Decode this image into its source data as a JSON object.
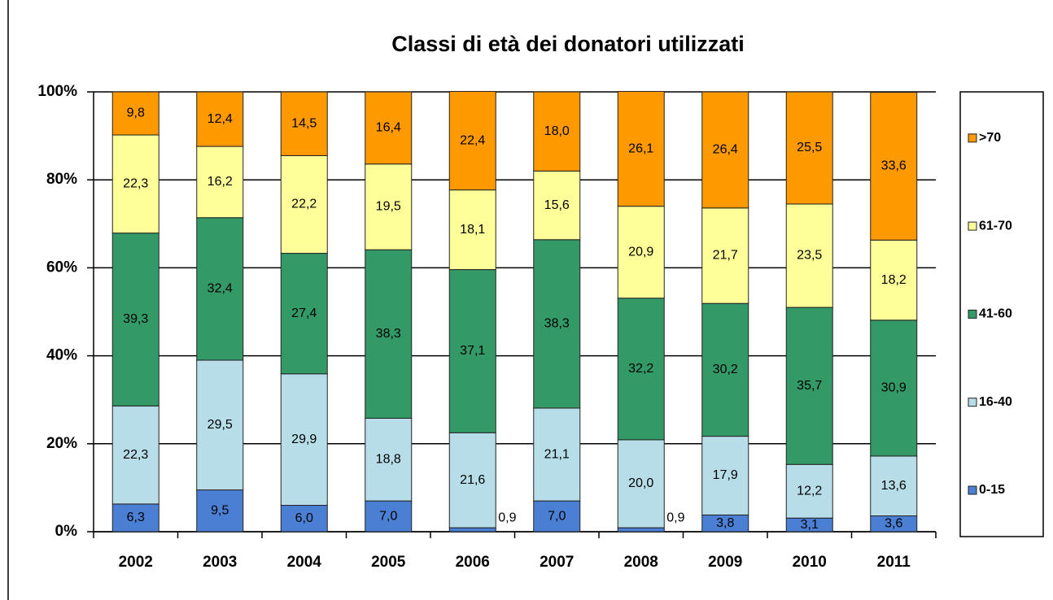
{
  "chart_data": {
    "type": "stacked_bar",
    "title": "Classi di età dei donatori utilizzati",
    "categories": [
      "2002",
      "2003",
      "2004",
      "2005",
      "2006",
      "2007",
      "2008",
      "2009",
      "2010",
      "2011"
    ],
    "series": [
      {
        "name": "0-15",
        "color": "#4a7fd4",
        "values": [
          6.3,
          9.5,
          6.0,
          7.0,
          0.9,
          7.0,
          0.9,
          3.8,
          3.1,
          3.6
        ],
        "value_labels": [
          "6,3",
          "9,5",
          "6,0",
          "7,0",
          "0,9",
          "7,0",
          "0,9",
          "3,8",
          "3,1",
          "3,6"
        ]
      },
      {
        "name": "16-40",
        "color": "#b7dde8",
        "values": [
          22.3,
          29.5,
          29.9,
          18.8,
          21.6,
          21.1,
          20.0,
          17.9,
          12.2,
          13.6
        ],
        "value_labels": [
          "22,3",
          "29,5",
          "29,9",
          "18,8",
          "21,6",
          "21,1",
          "20,0",
          "17,9",
          "12,2",
          "13,6"
        ]
      },
      {
        "name": "41-60",
        "color": "#339966",
        "values": [
          39.3,
          32.4,
          27.4,
          38.3,
          37.1,
          38.3,
          32.2,
          30.2,
          35.7,
          30.9
        ],
        "value_labels": [
          "39,3",
          "32,4",
          "27,4",
          "38,3",
          "37,1",
          "38,3",
          "32,2",
          "30,2",
          "35,7",
          "30,9"
        ]
      },
      {
        "name": "61-70",
        "color": "#ffff99",
        "values": [
          22.3,
          16.2,
          22.2,
          19.5,
          18.1,
          15.6,
          20.9,
          21.7,
          23.5,
          18.2
        ],
        "value_labels": [
          "22,3",
          "16,2",
          "22,2",
          "19,5",
          "18,1",
          "15,6",
          "20,9",
          "21,7",
          "23,5",
          "18,2"
        ]
      },
      {
        "name": ">70",
        "color": "#ff9900",
        "values": [
          9.8,
          12.4,
          14.5,
          16.4,
          22.4,
          18.0,
          26.1,
          26.4,
          25.5,
          33.6
        ],
        "value_labels": [
          "9,8",
          "12,4",
          "14,5",
          "16,4",
          "22,4",
          "18,0",
          "26,1",
          "26,4",
          "25,5",
          "33,6"
        ]
      }
    ],
    "ylim": [
      0,
      100
    ],
    "yticks": [
      {
        "value": 0,
        "label": "0%"
      },
      {
        "value": 20,
        "label": "20%"
      },
      {
        "value": 40,
        "label": "40%"
      },
      {
        "value": 60,
        "label": "60%"
      },
      {
        "value": 80,
        "label": "80%"
      },
      {
        "value": 100,
        "label": "100%"
      }
    ],
    "grid": true,
    "legend": "right"
  }
}
